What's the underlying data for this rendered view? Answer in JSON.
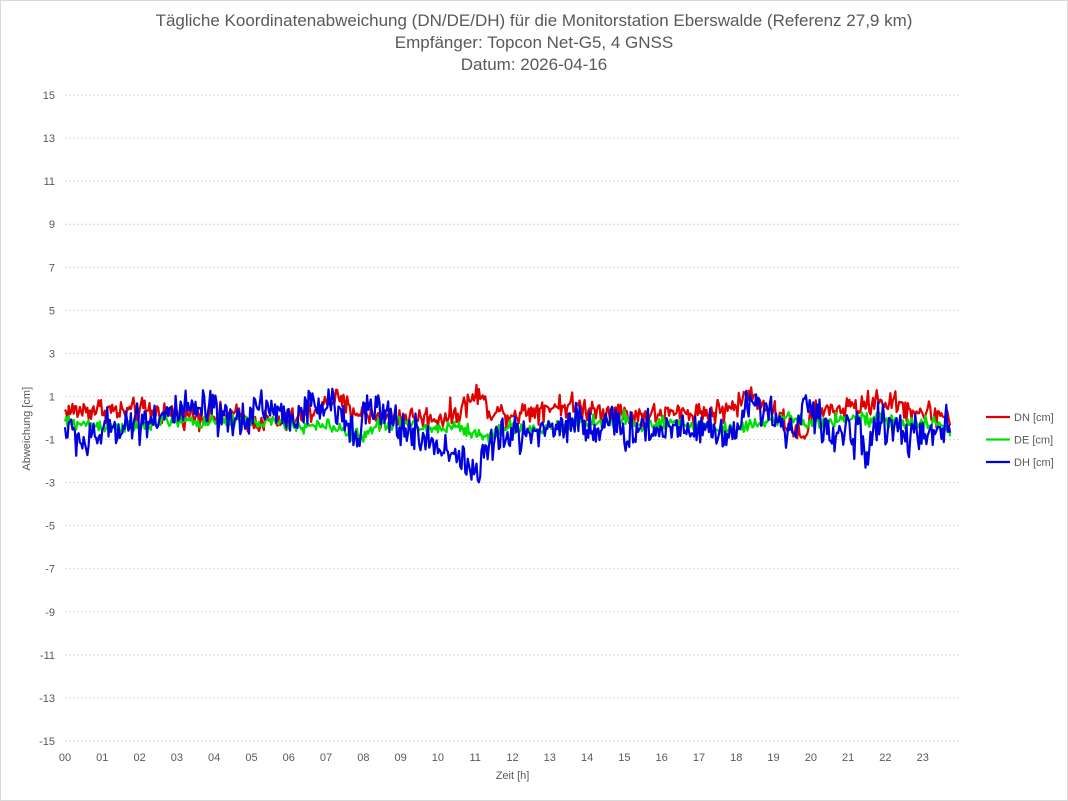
{
  "chart_data": {
    "type": "line",
    "title": "Tägliche Koordinatenabweichung (DN/DE/DH) für die Monitorstation Eberswalde (Referenz 27,9 km)",
    "subtitle_1": "Empfänger: Topcon Net-G5, 4 GNSS",
    "subtitle_2": "Datum: 2026-04-16",
    "xlabel": "Zeit [h]",
    "ylabel": "Abweichung [cm]",
    "xlim": [
      0,
      24
    ],
    "ylim": [
      -15,
      15
    ],
    "x_tick_labels": [
      "00",
      "01",
      "02",
      "03",
      "04",
      "05",
      "06",
      "07",
      "08",
      "09",
      "10",
      "11",
      "12",
      "13",
      "14",
      "15",
      "16",
      "17",
      "18",
      "19",
      "20",
      "21",
      "22",
      "23"
    ],
    "y_tick_values": [
      15,
      13,
      11,
      9,
      7,
      5,
      3,
      1,
      -1,
      -3,
      -5,
      -7,
      -9,
      -11,
      -13,
      -15
    ],
    "grid": "horizontal-dotted",
    "legend_position": "right",
    "series": [
      {
        "name": "DN [cm]",
        "color": "#e00000",
        "keypoints": [
          [
            0,
            0.3
          ],
          [
            0.5,
            0.35
          ],
          [
            1,
            0.45
          ],
          [
            1.5,
            0.25
          ],
          [
            2,
            0.35
          ],
          [
            2.5,
            0.3
          ],
          [
            3,
            0.2
          ],
          [
            3.5,
            0.15
          ],
          [
            4,
            0.1
          ],
          [
            4.5,
            0.1
          ],
          [
            5,
            -0.1
          ],
          [
            5.5,
            -0.2
          ],
          [
            6,
            -0.2
          ],
          [
            6.5,
            0.2
          ],
          [
            7,
            0.6
          ],
          [
            7.2,
            0.95
          ],
          [
            7.5,
            0.55
          ],
          [
            8,
            0.2
          ],
          [
            8.5,
            0.1
          ],
          [
            9,
            0.05
          ],
          [
            9.5,
            0.0
          ],
          [
            10,
            0.0
          ],
          [
            10.5,
            0.2
          ],
          [
            10.9,
            0.9
          ],
          [
            11.1,
            1.15
          ],
          [
            11.3,
            0.5
          ],
          [
            11.6,
            0.25
          ],
          [
            12,
            0.2
          ],
          [
            12.5,
            0.35
          ],
          [
            13,
            0.55
          ],
          [
            13.5,
            0.6
          ],
          [
            14,
            0.45
          ],
          [
            14.5,
            0.35
          ],
          [
            15,
            0.2
          ],
          [
            15.5,
            0.1
          ],
          [
            16,
            0.15
          ],
          [
            16.5,
            0.2
          ],
          [
            17,
            0.25
          ],
          [
            17.5,
            0.3
          ],
          [
            18,
            0.55
          ],
          [
            18.3,
            1.1
          ],
          [
            18.6,
            0.9
          ],
          [
            19,
            0.3
          ],
          [
            19.3,
            -0.2
          ],
          [
            19.6,
            -0.5
          ],
          [
            19.8,
            -1.2
          ],
          [
            20,
            0.1
          ],
          [
            20.5,
            0.35
          ],
          [
            21,
            0.45
          ],
          [
            21.5,
            0.6
          ],
          [
            21.8,
            0.9
          ],
          [
            22,
            0.75
          ],
          [
            22.5,
            0.5
          ],
          [
            23,
            0.25
          ],
          [
            23.5,
            0.15
          ],
          [
            23.75,
            0.1
          ]
        ]
      },
      {
        "name": "DE [cm]",
        "color": "#00e000",
        "keypoints": [
          [
            0,
            -0.2
          ],
          [
            0.5,
            -0.3
          ],
          [
            1,
            -0.35
          ],
          [
            1.5,
            -0.4
          ],
          [
            2,
            -0.45
          ],
          [
            2.5,
            -0.2
          ],
          [
            3,
            -0.1
          ],
          [
            3.5,
            -0.2
          ],
          [
            4,
            -0.2
          ],
          [
            4.5,
            -0.1
          ],
          [
            5,
            -0.15
          ],
          [
            5.5,
            -0.2
          ],
          [
            6,
            -0.3
          ],
          [
            6.5,
            -0.4
          ],
          [
            7,
            -0.35
          ],
          [
            7.5,
            -0.55
          ],
          [
            8,
            -0.9
          ],
          [
            8.2,
            -0.6
          ],
          [
            8.5,
            -0.25
          ],
          [
            9,
            -0.2
          ],
          [
            9.5,
            -0.45
          ],
          [
            10,
            -0.5
          ],
          [
            10.5,
            -0.35
          ],
          [
            11,
            -0.75
          ],
          [
            11.3,
            -0.9
          ],
          [
            11.6,
            -0.6
          ],
          [
            12,
            -0.4
          ],
          [
            12.5,
            -0.55
          ],
          [
            13,
            -0.5
          ],
          [
            13.5,
            -0.3
          ],
          [
            14,
            -0.2
          ],
          [
            14.5,
            -0.25
          ],
          [
            15,
            0.05
          ],
          [
            15.2,
            -0.3
          ],
          [
            15.5,
            -0.4
          ],
          [
            16,
            -0.3
          ],
          [
            16.5,
            -0.3
          ],
          [
            17,
            -0.3
          ],
          [
            17.5,
            -0.5
          ],
          [
            18,
            -0.55
          ],
          [
            18.5,
            -0.2
          ],
          [
            19,
            -0.1
          ],
          [
            19.5,
            -0.05
          ],
          [
            20,
            -0.3
          ],
          [
            20.5,
            -0.1
          ],
          [
            21,
            0.0
          ],
          [
            21.5,
            -0.1
          ],
          [
            22,
            -0.1
          ],
          [
            22.5,
            -0.35
          ],
          [
            23,
            -0.2
          ],
          [
            23.5,
            -0.3
          ],
          [
            23.75,
            -0.7
          ]
        ]
      },
      {
        "name": "DH [cm]",
        "color": "#0000e0",
        "keypoints": [
          [
            0,
            -0.5
          ],
          [
            0.3,
            -0.8
          ],
          [
            0.6,
            -1.3
          ],
          [
            1,
            -0.6
          ],
          [
            1.5,
            -0.3
          ],
          [
            2,
            -0.1
          ],
          [
            2.5,
            0.1
          ],
          [
            3,
            0.2
          ],
          [
            3.5,
            0.3
          ],
          [
            3.9,
            0.4
          ],
          [
            4.2,
            -0.2
          ],
          [
            4.6,
            -0.2
          ],
          [
            5,
            0.3
          ],
          [
            5.3,
            0.7
          ],
          [
            5.6,
            0.3
          ],
          [
            6,
            0.0
          ],
          [
            6.5,
            0.4
          ],
          [
            7,
            0.6
          ],
          [
            7.3,
            0.3
          ],
          [
            7.5,
            -0.1
          ],
          [
            7.8,
            -0.5
          ],
          [
            8,
            0.1
          ],
          [
            8.3,
            0.5
          ],
          [
            8.6,
            0.0
          ],
          [
            9,
            -0.4
          ],
          [
            9.5,
            -0.9
          ],
          [
            10,
            -1.3
          ],
          [
            10.5,
            -1.6
          ],
          [
            10.8,
            -2.2
          ],
          [
            11,
            -2.7
          ],
          [
            11.2,
            -1.8
          ],
          [
            11.5,
            -1.1
          ],
          [
            12,
            -0.8
          ],
          [
            12.5,
            -0.6
          ],
          [
            13,
            -0.5
          ],
          [
            13.5,
            -0.2
          ],
          [
            13.8,
            0.0
          ],
          [
            14,
            -0.6
          ],
          [
            14.5,
            -0.2
          ],
          [
            15,
            -0.7
          ],
          [
            15.5,
            -0.4
          ],
          [
            16,
            -0.6
          ],
          [
            16.5,
            -0.3
          ],
          [
            17,
            -0.4
          ],
          [
            17.5,
            -0.6
          ],
          [
            18,
            -0.7
          ],
          [
            18.3,
            0.4
          ],
          [
            18.6,
            1.0
          ],
          [
            18.9,
            0.3
          ],
          [
            19.2,
            -0.3
          ],
          [
            19.5,
            -0.8
          ],
          [
            19.8,
            0.9
          ],
          [
            20,
            0.2
          ],
          [
            20.3,
            -0.3
          ],
          [
            20.6,
            -0.9
          ],
          [
            21,
            -0.6
          ],
          [
            21.3,
            -0.8
          ],
          [
            21.5,
            -1.5
          ],
          [
            21.8,
            -0.2
          ],
          [
            22.2,
            -0.4
          ],
          [
            22.6,
            -0.8
          ],
          [
            23,
            -1.0
          ],
          [
            23.3,
            -0.8
          ],
          [
            23.75,
            -0.4
          ]
        ]
      }
    ]
  }
}
